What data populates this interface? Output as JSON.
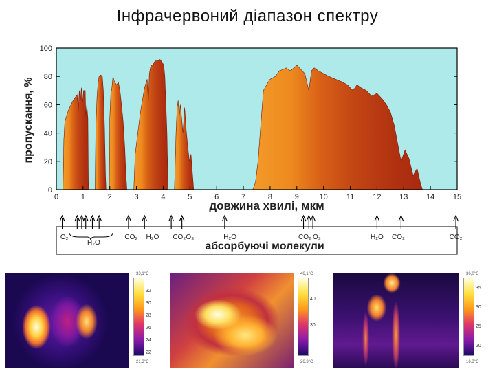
{
  "slide": {
    "title": "Інфрачервоний діапазон спектру"
  },
  "chart_data": {
    "type": "area",
    "ylabel": "пропускання, %",
    "xlabel": "довжина хвилі, мкм",
    "xlim": [
      0,
      15
    ],
    "ylim": [
      0,
      100
    ],
    "x_ticks": [
      "0",
      "1",
      "2",
      "3",
      "4",
      "5",
      "6",
      "7",
      "8",
      "9",
      "10",
      "11",
      "12",
      "13",
      "14",
      "15"
    ],
    "y_ticks": [
      "0",
      "20",
      "40",
      "60",
      "80",
      "100"
    ],
    "colors": {
      "plot_bg": "#aeeaea",
      "band_light": "#f08a1e",
      "band_dark": "#b83212",
      "frame": "#000000"
    },
    "series": [
      {
        "values": [
          [
            0.25,
            0
          ],
          [
            0.28,
            35
          ],
          [
            0.32,
            48
          ],
          [
            0.45,
            56
          ],
          [
            0.6,
            62
          ],
          [
            0.7,
            65
          ],
          [
            0.78,
            67
          ],
          [
            0.82,
            56
          ],
          [
            0.86,
            70
          ],
          [
            0.9,
            63
          ],
          [
            0.94,
            72
          ],
          [
            0.98,
            62
          ],
          [
            1.02,
            70
          ],
          [
            1.08,
            70
          ],
          [
            1.1,
            52
          ],
          [
            1.14,
            60
          ],
          [
            1.18,
            50
          ],
          [
            1.2,
            5
          ],
          [
            1.22,
            0
          ]
        ]
      },
      {
        "values": [
          [
            1.45,
            0
          ],
          [
            1.48,
            45
          ],
          [
            1.52,
            65
          ],
          [
            1.56,
            75
          ],
          [
            1.6,
            80
          ],
          [
            1.66,
            81
          ],
          [
            1.72,
            80
          ],
          [
            1.76,
            70
          ],
          [
            1.8,
            45
          ],
          [
            1.84,
            10
          ],
          [
            1.86,
            0
          ]
        ]
      },
      {
        "values": [
          [
            1.98,
            0
          ],
          [
            2.0,
            50
          ],
          [
            2.04,
            68
          ],
          [
            2.08,
            72
          ],
          [
            2.12,
            80
          ],
          [
            2.18,
            76
          ],
          [
            2.26,
            74
          ],
          [
            2.32,
            76
          ],
          [
            2.38,
            70
          ],
          [
            2.44,
            60
          ],
          [
            2.5,
            48
          ],
          [
            2.56,
            30
          ],
          [
            2.6,
            12
          ],
          [
            2.64,
            0
          ]
        ]
      },
      {
        "values": [
          [
            2.9,
            0
          ],
          [
            2.95,
            25
          ],
          [
            3.05,
            40
          ],
          [
            3.15,
            55
          ],
          [
            3.3,
            72
          ],
          [
            3.4,
            78
          ],
          [
            3.44,
            62
          ],
          [
            3.48,
            82
          ],
          [
            3.52,
            86
          ],
          [
            3.56,
            88
          ],
          [
            3.62,
            88
          ],
          [
            3.66,
            90
          ],
          [
            3.72,
            91
          ],
          [
            3.8,
            91
          ],
          [
            3.88,
            92
          ],
          [
            3.96,
            90
          ],
          [
            4.02,
            88
          ],
          [
            4.06,
            80
          ],
          [
            4.1,
            60
          ],
          [
            4.14,
            40
          ],
          [
            4.18,
            0
          ]
        ]
      },
      {
        "values": [
          [
            4.42,
            0
          ],
          [
            4.48,
            40
          ],
          [
            4.52,
            58
          ],
          [
            4.56,
            63
          ],
          [
            4.6,
            52
          ],
          [
            4.64,
            60
          ],
          [
            4.7,
            48
          ],
          [
            4.74,
            40
          ],
          [
            4.8,
            58
          ],
          [
            4.86,
            42
          ],
          [
            4.92,
            30
          ],
          [
            4.98,
            20
          ],
          [
            5.04,
            25
          ],
          [
            5.1,
            10
          ],
          [
            5.14,
            0
          ]
        ]
      },
      {
        "values": [
          [
            7.35,
            0
          ],
          [
            7.45,
            5
          ],
          [
            7.55,
            20
          ],
          [
            7.65,
            45
          ],
          [
            7.75,
            70
          ],
          [
            7.9,
            75
          ],
          [
            8.0,
            78
          ],
          [
            8.2,
            80
          ],
          [
            8.35,
            84
          ],
          [
            8.5,
            85
          ],
          [
            8.6,
            86
          ],
          [
            8.75,
            84
          ],
          [
            8.9,
            86
          ],
          [
            9.0,
            88
          ],
          [
            9.15,
            85
          ],
          [
            9.3,
            82
          ],
          [
            9.45,
            70
          ],
          [
            9.55,
            84
          ],
          [
            9.65,
            86
          ],
          [
            9.8,
            84
          ],
          [
            10.0,
            82
          ],
          [
            10.2,
            80
          ],
          [
            10.45,
            78
          ],
          [
            10.7,
            76
          ],
          [
            10.9,
            74
          ],
          [
            11.1,
            70
          ],
          [
            11.25,
            74
          ],
          [
            11.4,
            72
          ],
          [
            11.6,
            70
          ],
          [
            11.8,
            66
          ],
          [
            12.0,
            68
          ],
          [
            12.2,
            64
          ],
          [
            12.35,
            60
          ],
          [
            12.5,
            55
          ],
          [
            12.65,
            45
          ],
          [
            12.8,
            30
          ],
          [
            12.9,
            20
          ],
          [
            13.05,
            28
          ],
          [
            13.2,
            22
          ],
          [
            13.35,
            10
          ],
          [
            13.5,
            15
          ],
          [
            13.62,
            5
          ],
          [
            13.7,
            0
          ]
        ]
      }
    ],
    "absorption_arrows": [
      0.22,
      0.78,
      0.95,
      1.1,
      1.35,
      1.6,
      2.7,
      3.3,
      4.3,
      4.7,
      6.3,
      9.25,
      9.45,
      9.6,
      12.0,
      12.9,
      14.95
    ],
    "absorption_labels": [
      {
        "mol": "O₂",
        "x": 0.3
      },
      {
        "mol": "H₂O",
        "x": 1.4
      },
      {
        "mol": "CO₂",
        "x": 2.8
      },
      {
        "mol": "H₂O",
        "x": 3.6
      },
      {
        "mol": "CO₂",
        "x": 4.6
      },
      {
        "mol": "O₃",
        "x": 5.0
      },
      {
        "mol": "H₂O",
        "x": 6.5
      },
      {
        "mol": "CO₂",
        "x": 9.3
      },
      {
        "mol": "O₃",
        "x": 9.75
      },
      {
        "mol": "H₂O",
        "x": 12.0
      },
      {
        "mol": "CO₂",
        "x": 12.8
      },
      {
        "mol": "CO₂",
        "x": 14.95
      }
    ],
    "absorption_title": "абсорбуючі молекули"
  },
  "thermal_images": [
    {
      "scale_top": "33,1°C",
      "scale_bottom": "21,3°C",
      "ticks": [
        "32",
        "30",
        "28",
        "26",
        "24",
        "22"
      ]
    },
    {
      "scale_top": "46,1°C",
      "scale_bottom": "26,3°C",
      "ticks": [
        "40",
        "30"
      ]
    },
    {
      "scale_top": "36,0°C",
      "scale_bottom": "16,3°C",
      "ticks": [
        "35",
        "30",
        "25",
        "20"
      ]
    }
  ]
}
